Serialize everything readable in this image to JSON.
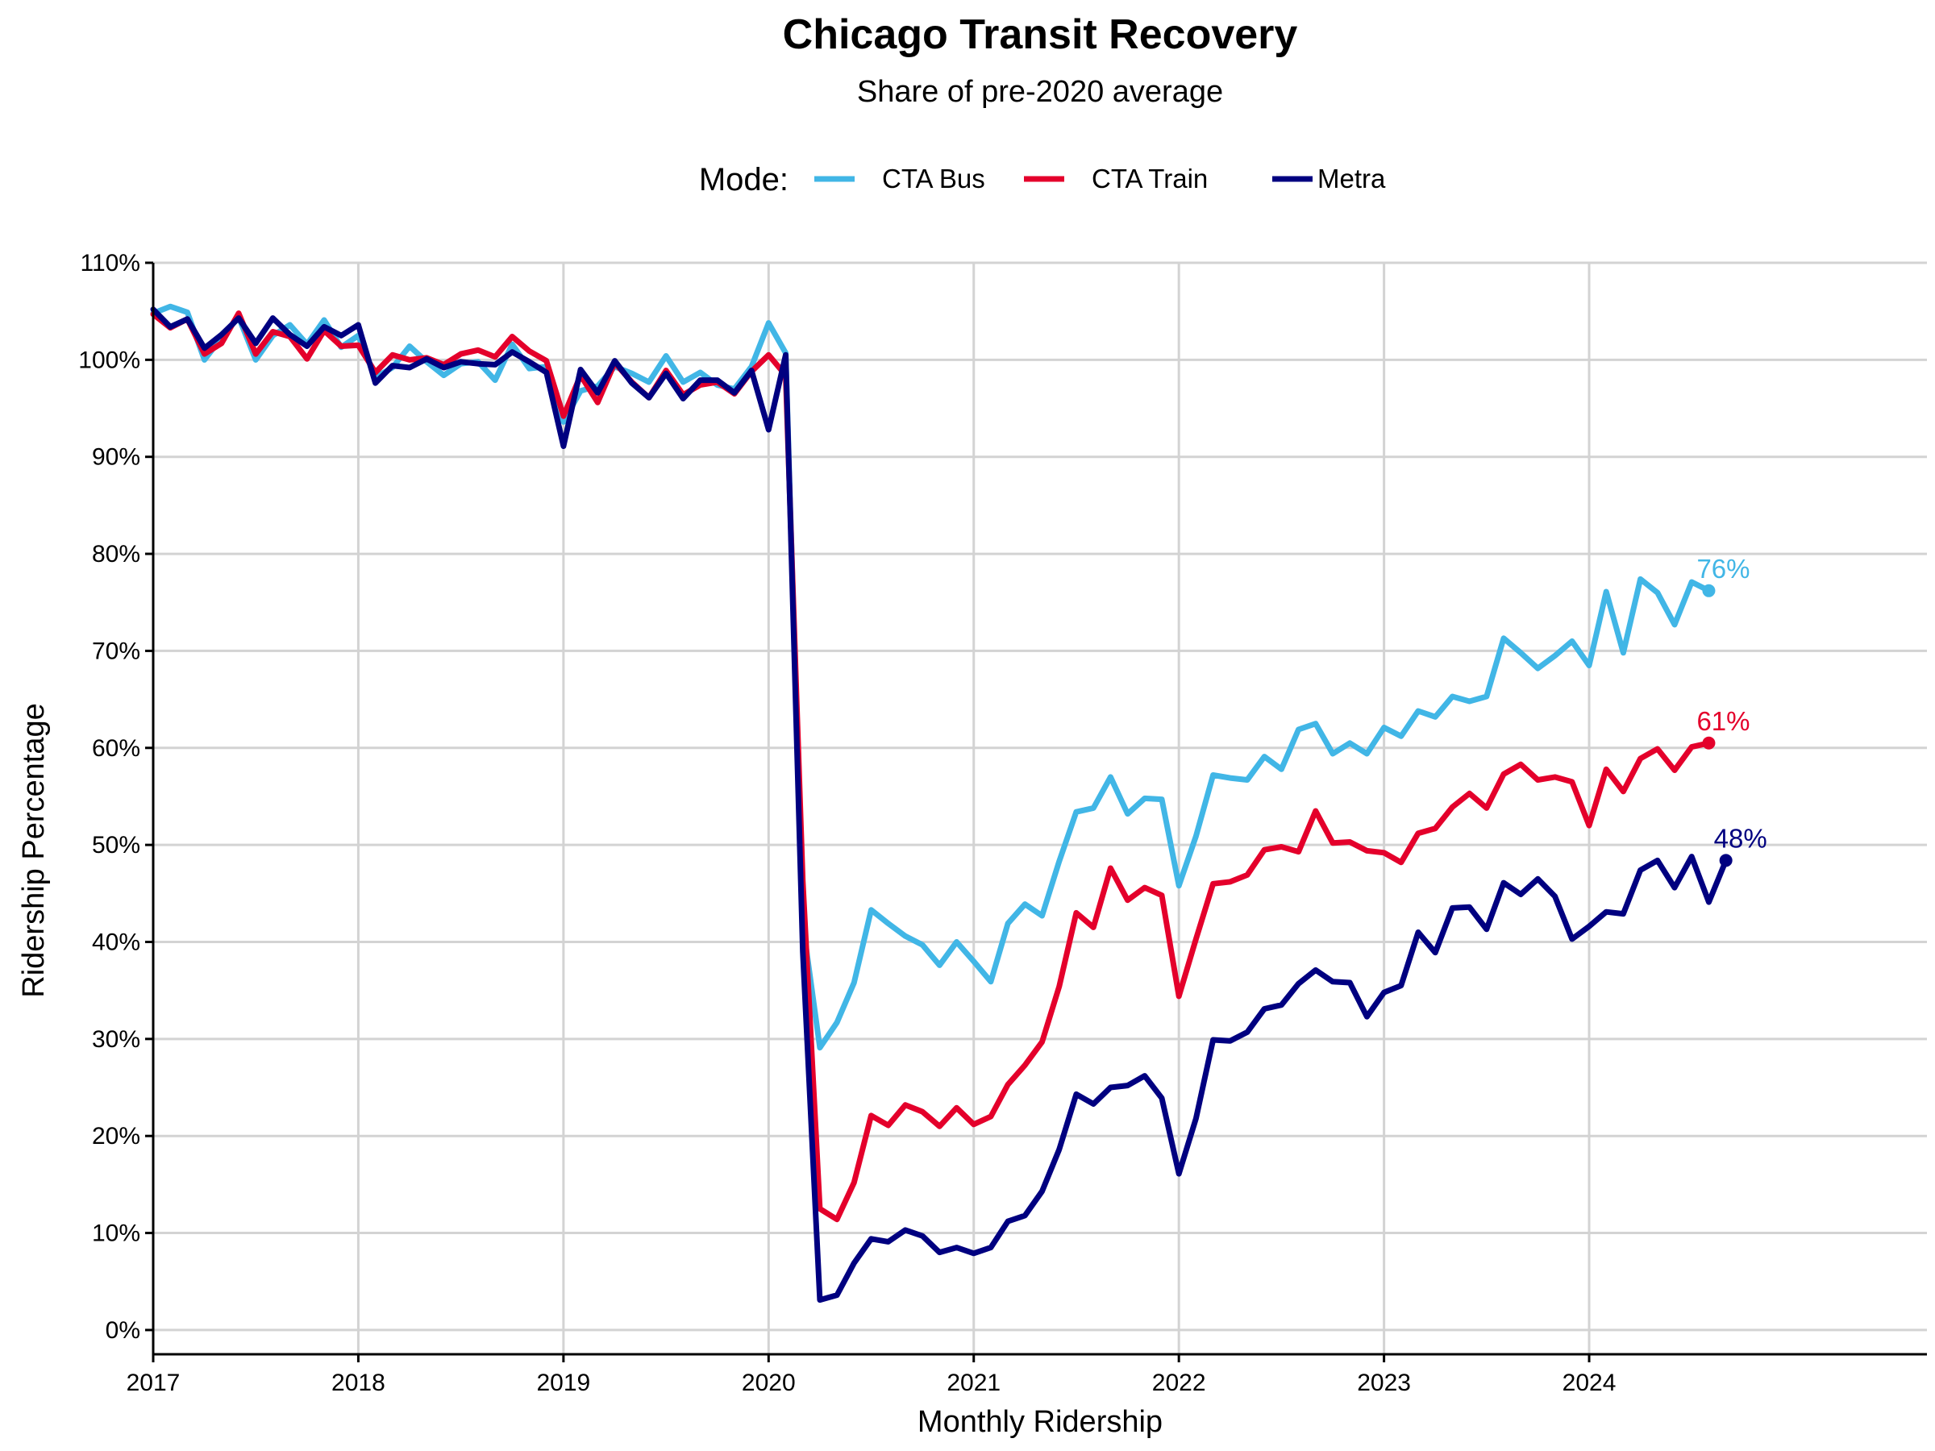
{
  "chart_data": {
    "type": "line",
    "title": "Chicago Transit Recovery",
    "subtitle": "Share of pre-2020 average",
    "xlabel": "Monthly Ridership",
    "ylabel": "Ridership Percentage",
    "legend": {
      "title": "Mode:",
      "placement": "top"
    },
    "grid": true,
    "xlim": [
      "2017-01",
      "2024-12"
    ],
    "ylim": [
      -2.5,
      110
    ],
    "x_ticks": [
      "2017",
      "2018",
      "2019",
      "2020",
      "2021",
      "2022",
      "2023",
      "2024"
    ],
    "y_ticks": [
      "0%",
      "10%",
      "20%",
      "30%",
      "40%",
      "50%",
      "60%",
      "70%",
      "80%",
      "90%",
      "100%",
      "110%"
    ],
    "y_tick_values": [
      0,
      10,
      20,
      30,
      40,
      50,
      60,
      70,
      80,
      90,
      100,
      110
    ],
    "series": [
      {
        "name": "CTA Bus",
        "color": "#41B6E6",
        "start": "2017-01",
        "end_label": "76%",
        "values": [
          104.8,
          105.5,
          104.9,
          100.0,
          102.3,
          104.4,
          100.0,
          102.5,
          103.6,
          101.6,
          104.1,
          101.3,
          102.5,
          98.2,
          99.2,
          101.4,
          99.8,
          98.4,
          99.6,
          99.8,
          97.9,
          101.6,
          99.1,
          99.3,
          93.6,
          96.8,
          97.3,
          99.3,
          98.6,
          97.7,
          100.4,
          97.7,
          98.7,
          97.4,
          97.0,
          99.3,
          103.8,
          100.7,
          41.9,
          29.1,
          31.7,
          35.8,
          43.3,
          41.9,
          40.6,
          39.7,
          37.6,
          40.0,
          38.0,
          35.9,
          41.9,
          43.9,
          42.7,
          48.3,
          53.4,
          53.8,
          57.0,
          53.2,
          54.8,
          54.7,
          45.8,
          50.9,
          57.2,
          56.9,
          56.7,
          59.1,
          57.8,
          61.9,
          62.5,
          59.4,
          60.5,
          59.4,
          62.1,
          61.2,
          63.8,
          63.2,
          65.3,
          64.8,
          65.3,
          71.3,
          69.8,
          68.2,
          69.5,
          71.0,
          68.5,
          76.1,
          69.8,
          77.4,
          76.0,
          72.7,
          77.1,
          76.2
        ]
      },
      {
        "name": "CTA Train",
        "color": "#E4002B",
        "start": "2017-01",
        "end_label": "61%",
        "values": [
          104.7,
          103.3,
          104.2,
          100.6,
          101.7,
          104.8,
          100.6,
          102.9,
          102.4,
          100.1,
          103.0,
          101.4,
          101.5,
          98.7,
          100.5,
          100.0,
          100.2,
          99.5,
          100.6,
          101.0,
          100.3,
          102.4,
          100.9,
          99.9,
          94.2,
          98.4,
          95.6,
          99.7,
          97.7,
          96.1,
          98.9,
          96.4,
          97.4,
          97.7,
          96.5,
          98.8,
          100.5,
          98.4,
          46.3,
          12.5,
          11.4,
          15.2,
          22.1,
          21.1,
          23.2,
          22.5,
          21.0,
          22.9,
          21.2,
          22.0,
          25.3,
          27.3,
          29.7,
          35.4,
          43.0,
          41.5,
          47.6,
          44.3,
          45.6,
          44.8,
          34.4,
          40.3,
          46.0,
          46.2,
          46.9,
          49.5,
          49.8,
          49.3,
          53.5,
          50.2,
          50.3,
          49.4,
          49.2,
          48.2,
          51.2,
          51.7,
          53.9,
          55.3,
          53.8,
          57.3,
          58.3,
          56.7,
          57.0,
          56.5,
          52.0,
          57.8,
          55.5,
          58.9,
          59.9,
          57.7,
          60.1,
          60.5
        ]
      },
      {
        "name": "Metra",
        "color": "#000080",
        "start": "2017-01",
        "end_label": "48%",
        "values": [
          105.2,
          103.4,
          104.2,
          101.2,
          102.6,
          104.3,
          101.7,
          104.3,
          102.6,
          101.4,
          103.4,
          102.5,
          103.6,
          97.6,
          99.4,
          99.2,
          100.1,
          99.2,
          99.8,
          99.6,
          99.5,
          100.8,
          99.8,
          98.7,
          91.1,
          99.0,
          96.6,
          99.9,
          97.6,
          96.1,
          98.6,
          96.0,
          97.9,
          97.9,
          96.6,
          98.9,
          92.8,
          100.5,
          39.0,
          3.1,
          3.6,
          6.9,
          9.4,
          9.1,
          10.3,
          9.7,
          8.0,
          8.5,
          7.9,
          8.5,
          11.2,
          11.8,
          14.3,
          18.6,
          24.3,
          23.3,
          25.0,
          25.2,
          26.2,
          23.9,
          16.1,
          21.8,
          29.9,
          29.8,
          30.7,
          33.1,
          33.5,
          35.7,
          37.1,
          35.9,
          35.8,
          32.3,
          34.8,
          35.5,
          41.0,
          38.9,
          43.5,
          43.6,
          41.3,
          46.1,
          44.9,
          46.5,
          44.7,
          40.3,
          41.6,
          43.1,
          42.9,
          47.4,
          48.4,
          45.6,
          48.8,
          44.1,
          48.4
        ]
      }
    ]
  }
}
